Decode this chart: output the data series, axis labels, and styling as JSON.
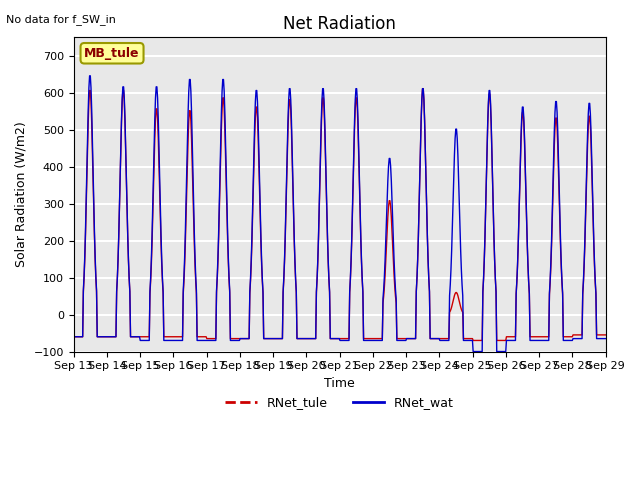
{
  "title": "Net Radiation",
  "xlabel": "Time",
  "ylabel": "Solar Radiation (W/m2)",
  "text_top_left": "No data for f_SW_in",
  "legend_box_label": "MB_tule",
  "legend_entries": [
    "RNet_tule",
    "RNet_wat"
  ],
  "legend_colors": [
    "#cc0000",
    "#0000cc"
  ],
  "ylim": [
    -100,
    750
  ],
  "yticks": [
    -100,
    0,
    100,
    200,
    300,
    400,
    500,
    600,
    700
  ],
  "background_color": "#e8e8e8",
  "grid_color": "white",
  "n_days": 16,
  "start_day": 13,
  "peaks_tule": [
    610,
    610,
    560,
    555,
    590,
    565,
    585,
    590,
    590,
    310,
    615,
    60,
    600,
    550,
    535,
    540
  ],
  "peaks_wat": [
    650,
    620,
    620,
    640,
    640,
    610,
    615,
    615,
    615,
    425,
    615,
    505,
    610,
    565,
    580,
    575
  ],
  "night_tule": [
    -60,
    -60,
    -60,
    -60,
    -65,
    -65,
    -65,
    -65,
    -65,
    -65,
    -65,
    -65,
    -70,
    -60,
    -60,
    -55
  ],
  "night_wat": [
    -60,
    -60,
    -70,
    -70,
    -70,
    -65,
    -65,
    -65,
    -70,
    -70,
    -65,
    -70,
    -100,
    -70,
    -70,
    -65
  ]
}
